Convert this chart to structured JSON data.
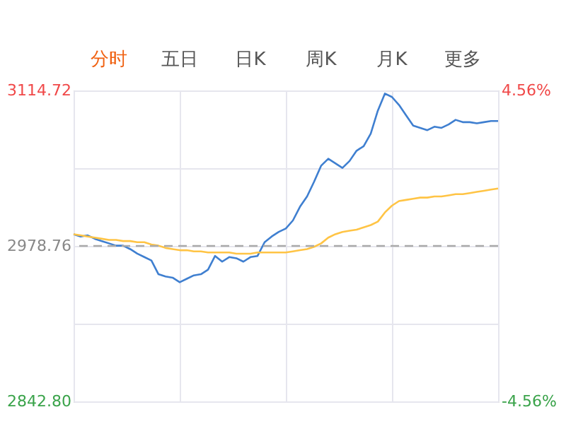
{
  "chart_data": {
    "type": "line",
    "annotations": [
      "分时",
      "五日",
      "日K",
      "周K",
      "月K",
      "更多"
    ],
    "categories": [
      null,
      null,
      null,
      null,
      null,
      null,
      null,
      null,
      null,
      null,
      null,
      null,
      null,
      null,
      null,
      null,
      null,
      null,
      null,
      null,
      null,
      null,
      null,
      null,
      null,
      null,
      null,
      null,
      null,
      null,
      null,
      null,
      null,
      null,
      null,
      null,
      null,
      null,
      null,
      null,
      null,
      null,
      null,
      null,
      null,
      null,
      null,
      null,
      null,
      null,
      null,
      null,
      null,
      null,
      null,
      null,
      null,
      null,
      null,
      null,
      null
    ],
    "ylim": [
      2842.8,
      3114.72
    ],
    "yticks": [
      {
        "value": 2842.8,
        "label": "2842.80"
      },
      {
        "value": 2910.78,
        "label": null
      },
      {
        "value": 2978.76,
        "label": "2978.76"
      },
      {
        "value": 3046.74,
        "label": null
      },
      {
        "value": 3114.72,
        "label": "3114.72"
      }
    ],
    "y2lim": [
      -4.56,
      4.56
    ],
    "y2ticks": [
      {
        "value": -4.56,
        "label": "-4.56%"
      },
      {
        "value": 4.56,
        "label": "4.56%"
      }
    ],
    "tick_labels": "y",
    "grid": true,
    "ref_lines": [
      {
        "axis": "y",
        "value": 2978.76,
        "color": "#aaaaaa",
        "line_style": "dashed"
      }
    ],
    "series": [
      {
        "color": "#3f7fd0",
        "values": [
          2989,
          2987,
          2988,
          2985,
          2983,
          2981,
          2979,
          2979,
          2976,
          2972,
          2969,
          2966,
          2954,
          2952,
          2951,
          2947,
          2950,
          2953,
          2954,
          2958,
          2970,
          2965,
          2969,
          2968,
          2965,
          2969,
          2970,
          2982,
          2987,
          2991,
          2994,
          3001,
          3013,
          3022,
          3035,
          3049,
          3055,
          3051,
          3047,
          3053,
          3062,
          3066,
          3077,
          3097,
          3112,
          3109,
          3102,
          3093,
          3084,
          3082,
          3080,
          3083,
          3082,
          3085,
          3089,
          3087,
          3087,
          3086,
          3087,
          3088,
          3088
        ]
      },
      {
        "color": "#ffc445",
        "values": [
          2989,
          2988,
          2987,
          2986,
          2985,
          2984,
          2984,
          2983,
          2983,
          2982,
          2982,
          2980,
          2979,
          2977,
          2976,
          2975,
          2975,
          2974,
          2974,
          2973,
          2973,
          2973,
          2973,
          2972,
          2972,
          2972,
          2973,
          2973,
          2973,
          2973,
          2973,
          2974,
          2975,
          2976,
          2978,
          2981,
          2986,
          2989,
          2991,
          2992,
          2993,
          2995,
          2997,
          3000,
          3008,
          3014,
          3018,
          3019,
          3020,
          3021,
          3021,
          3022,
          3022,
          3023,
          3024,
          3024,
          3025,
          3026,
          3027,
          3028,
          3029
        ]
      }
    ]
  }
}
